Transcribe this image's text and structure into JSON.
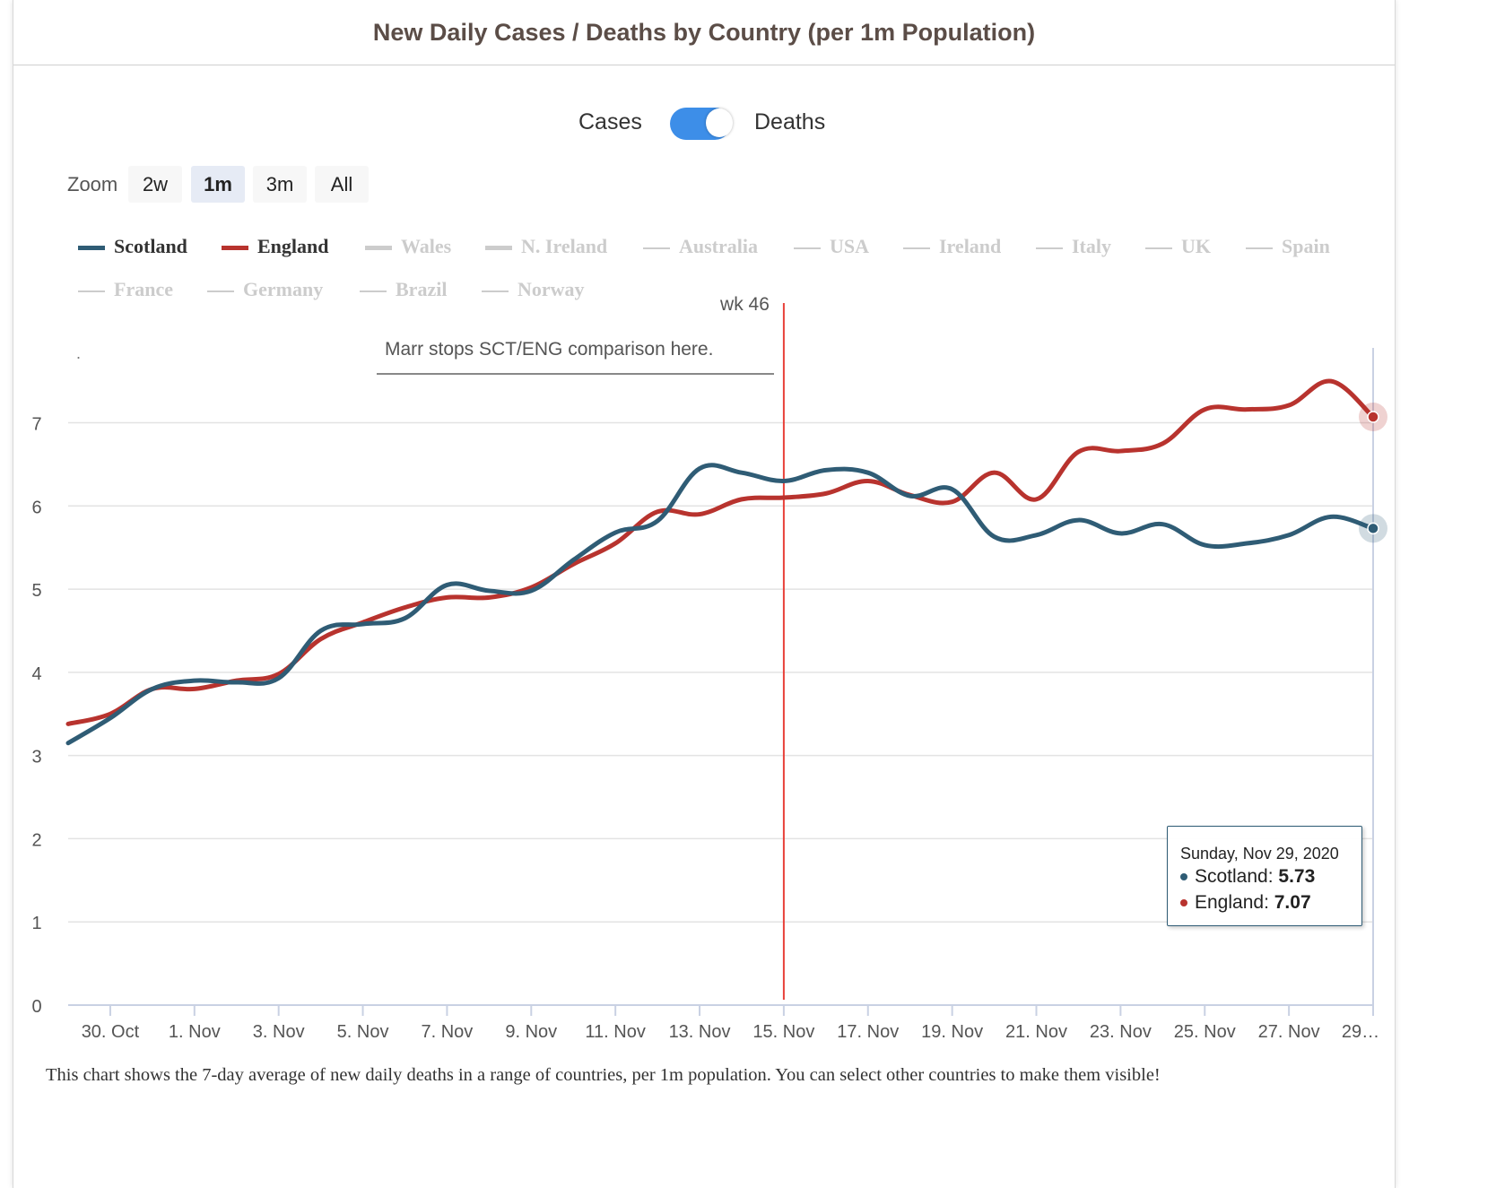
{
  "header": {
    "title": "New Daily Cases / Deaths by Country (per 1m Population)"
  },
  "toggle": {
    "left_label": "Cases",
    "right_label": "Deaths",
    "state": "Deaths",
    "accent": "#3d8ee8"
  },
  "zoom": {
    "label": "Zoom",
    "options": [
      "2w",
      "1m",
      "3m",
      "All"
    ],
    "selected": "1m"
  },
  "legend": [
    {
      "name": "Scotland",
      "color": "#2f5c75",
      "visible": true
    },
    {
      "name": "England",
      "color": "#b8332e",
      "visible": true
    },
    {
      "name": "Wales",
      "color": "#cccccc",
      "visible": false
    },
    {
      "name": "N. Ireland",
      "color": "#cccccc",
      "visible": false
    },
    {
      "name": "Australia",
      "color": "#cccccc",
      "visible": false
    },
    {
      "name": "USA",
      "color": "#cccccc",
      "visible": false
    },
    {
      "name": "Ireland",
      "color": "#cccccc",
      "visible": false
    },
    {
      "name": "Italy",
      "color": "#cccccc",
      "visible": false
    },
    {
      "name": "UK",
      "color": "#cccccc",
      "visible": false
    },
    {
      "name": "Spain",
      "color": "#cccccc",
      "visible": false
    },
    {
      "name": "France",
      "color": "#cccccc",
      "visible": false
    },
    {
      "name": "Germany",
      "color": "#cccccc",
      "visible": false
    },
    {
      "name": "Brazil",
      "color": "#cccccc",
      "visible": false
    },
    {
      "name": "Norway",
      "color": "#cccccc",
      "visible": false
    }
  ],
  "annotation": {
    "week_label": "wk 46",
    "note": "Marr stops SCT/ENG comparison here.",
    "marker_date": "15. Nov",
    "marker_color": "#e8413a",
    "stray_dot": "."
  },
  "tooltip": {
    "date": "Sunday, Nov 29, 2020",
    "rows": [
      {
        "label": "Scotland: ",
        "value": "5.73",
        "color": "#2f5c75"
      },
      {
        "label": "England: ",
        "value": "7.07",
        "color": "#b8332e"
      }
    ]
  },
  "caption": "This chart shows the 7-day average of new daily deaths in a range of countries, per 1m population. You can select other countries to make them visible!",
  "chart_data": {
    "type": "line",
    "x": [
      "29. Oct",
      "30. Oct",
      "31. Oct",
      "1. Nov",
      "2. Nov",
      "3. Nov",
      "4. Nov",
      "5. Nov",
      "6. Nov",
      "7. Nov",
      "8. Nov",
      "9. Nov",
      "10. Nov",
      "11. Nov",
      "12. Nov",
      "13. Nov",
      "14. Nov",
      "15. Nov",
      "16. Nov",
      "17. Nov",
      "18. Nov",
      "19. Nov",
      "20. Nov",
      "21. Nov",
      "22. Nov",
      "23. Nov",
      "24. Nov",
      "25. Nov",
      "26. Nov",
      "27. Nov",
      "28. Nov",
      "29. Nov"
    ],
    "x_tick_labels": [
      "30. Oct",
      "1. Nov",
      "3. Nov",
      "5. Nov",
      "7. Nov",
      "9. Nov",
      "11. Nov",
      "13. Nov",
      "15. Nov",
      "17. Nov",
      "19. Nov",
      "21. Nov",
      "23. Nov",
      "25. Nov",
      "27. Nov",
      "29…"
    ],
    "x_tick_indices": [
      1,
      3,
      5,
      7,
      9,
      11,
      13,
      15,
      17,
      19,
      21,
      23,
      25,
      27,
      29,
      31
    ],
    "series": [
      {
        "name": "Scotland",
        "color": "#2f5c75",
        "values": [
          3.15,
          3.45,
          3.8,
          3.9,
          3.88,
          3.93,
          4.5,
          4.58,
          4.65,
          5.05,
          4.98,
          4.98,
          5.35,
          5.68,
          5.82,
          6.45,
          6.4,
          6.3,
          6.43,
          6.4,
          6.12,
          6.2,
          5.63,
          5.65,
          5.83,
          5.67,
          5.78,
          5.53,
          5.55,
          5.65,
          5.87,
          5.73
        ]
      },
      {
        "name": "England",
        "color": "#b8332e",
        "values": [
          3.38,
          3.5,
          3.8,
          3.8,
          3.9,
          3.98,
          4.4,
          4.6,
          4.78,
          4.9,
          4.9,
          5.02,
          5.3,
          5.55,
          5.93,
          5.9,
          6.08,
          6.1,
          6.15,
          6.3,
          6.13,
          6.05,
          6.4,
          6.08,
          6.65,
          6.66,
          6.75,
          7.16,
          7.16,
          7.21,
          7.5,
          7.07
        ]
      }
    ],
    "xlabel": "",
    "ylabel": "",
    "y_ticks": [
      0,
      1,
      2,
      3,
      4,
      5,
      6,
      7
    ],
    "ylim": [
      0,
      7.9
    ],
    "grid": true,
    "legend_position": "top-left"
  }
}
